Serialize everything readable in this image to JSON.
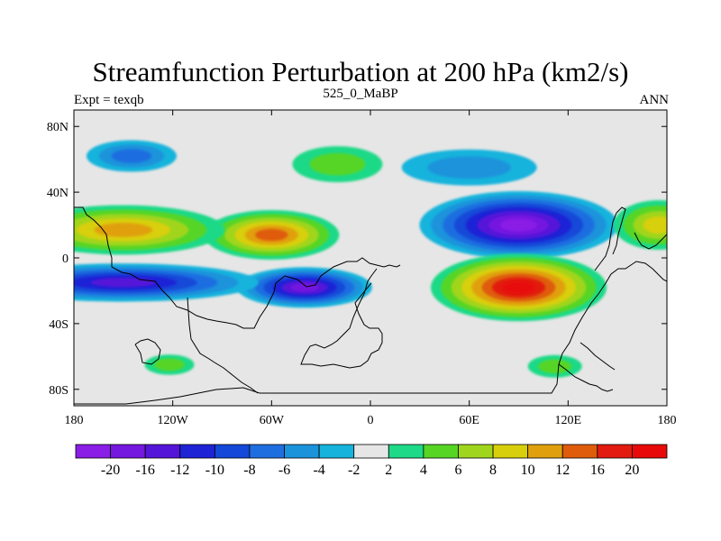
{
  "title": "Streamfunction Perturbation at 200 hPa (km2/s)",
  "subtitle_left": "Expt = texqb",
  "subtitle_center": "525_0_MaBP",
  "subtitle_right": "ANN",
  "x_ticks": [
    "180",
    "120W",
    "60W",
    "0",
    "60E",
    "120E",
    "180"
  ],
  "y_ticks": [
    "80N",
    "40N",
    "0",
    "40S",
    "80S"
  ],
  "colorbar": {
    "labels": [
      "-20",
      "-16",
      "-12",
      "-10",
      "-8",
      "-6",
      "-4",
      "-2",
      "2",
      "4",
      "6",
      "8",
      "10",
      "12",
      "16",
      "20"
    ],
    "colors": [
      "#8a1de6",
      "#7418e0",
      "#5515d8",
      "#1f23d6",
      "#1348d8",
      "#1f6ee0",
      "#1a93db",
      "#16b3dc",
      "#e6e6e6",
      "#1ed987",
      "#56d525",
      "#a0d51d",
      "#d8cf0c",
      "#e0a00e",
      "#df5c0c",
      "#e21a10",
      "#e80a0a"
    ]
  },
  "chart_data": {
    "type": "heatmap",
    "title": "Streamfunction Perturbation at 200 hPa (km2/s)",
    "subtitle": "525_0_MaBP",
    "x_range": [
      "180",
      "180"
    ],
    "y_range": [
      "80S",
      "80N"
    ],
    "levels": [
      -20,
      -16,
      -12,
      -10,
      -8,
      -6,
      -4,
      -2,
      2,
      4,
      6,
      8,
      10,
      12,
      16,
      20
    ],
    "features": [
      {
        "lon": 90,
        "lat": 20,
        "value": -20
      },
      {
        "lon": -40,
        "lat": -18,
        "value": -18
      },
      {
        "lon": -150,
        "lat": -15,
        "value": -12
      },
      {
        "lon": 90,
        "lat": -18,
        "value": 20
      },
      {
        "lon": -60,
        "lat": 14,
        "value": 14
      },
      {
        "lon": -150,
        "lat": 17,
        "value": 10
      },
      {
        "lon": -20,
        "lat": 57,
        "value": 5
      },
      {
        "lon": 60,
        "lat": 55,
        "value": -5
      },
      {
        "lon": -145,
        "lat": 62,
        "value": -6
      },
      {
        "lon": 175,
        "lat": 20,
        "value": 8
      },
      {
        "lon": -122,
        "lat": -65,
        "value": 4
      },
      {
        "lon": 112,
        "lat": -66,
        "value": 4
      }
    ]
  }
}
